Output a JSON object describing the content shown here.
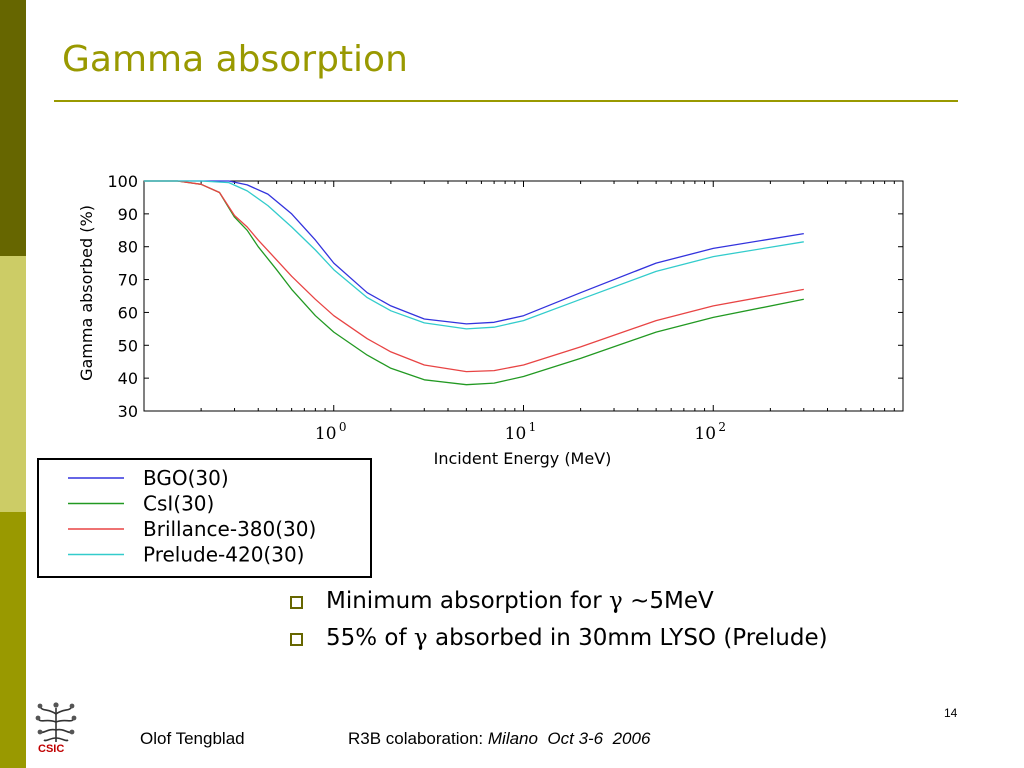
{
  "slide": {
    "title": "Gamma absorption",
    "page_number": "14",
    "footer": {
      "author": "Olof Tengblad",
      "event_prefix": "R3B colaboration: ",
      "event_location": "Milano  Oct 3-6  2006"
    },
    "logo_text": "CSIC",
    "bullets": [
      {
        "before": "Minimum absorption for ",
        "symbol": "γ",
        "after": " ~5MeV"
      },
      {
        "before": "55% of ",
        "symbol": "γ",
        "after": " absorbed in 30mm LYSO (Prelude)"
      }
    ]
  },
  "colors": {
    "accent_dark": "#666600",
    "accent_light": "#cccc66",
    "accent_mid": "#999900",
    "logo_red": "#c00000"
  },
  "chart_data": {
    "type": "line",
    "title": "",
    "xlabel": "Incident Energy (MeV)",
    "ylabel": "Gamma absorbed (%)",
    "xscale": "log",
    "xlim": [
      0.1,
      1000
    ],
    "ylim": [
      30,
      100
    ],
    "yticks": [
      30,
      40,
      50,
      60,
      70,
      80,
      90,
      100
    ],
    "xticks": [
      {
        "value": 1,
        "base": "10",
        "exp": "0"
      },
      {
        "value": 10,
        "base": "10",
        "exp": "1"
      },
      {
        "value": 100,
        "base": "10",
        "exp": "2"
      }
    ],
    "legend_position": "below-left",
    "series": [
      {
        "name": "BGO(30)",
        "color": "#3333dd",
        "x": [
          0.1,
          0.2,
          0.28,
          0.35,
          0.45,
          0.6,
          0.8,
          1.0,
          1.5,
          2.0,
          3.0,
          5.0,
          7.0,
          10,
          20,
          50,
          100,
          300
        ],
        "y": [
          100,
          100,
          100,
          98.8,
          96,
          90,
          82,
          75,
          66,
          62,
          58,
          56.5,
          57,
          59,
          66,
          75,
          79.5,
          84
        ]
      },
      {
        "name": "CsI(30)",
        "color": "#229922",
        "x": [
          0.1,
          0.15,
          0.2,
          0.25,
          0.3,
          0.35,
          0.4,
          0.5,
          0.6,
          0.8,
          1.0,
          1.5,
          2.0,
          3.0,
          5.0,
          7.0,
          10,
          20,
          50,
          100,
          300
        ],
        "y": [
          100,
          100,
          99,
          96.5,
          89,
          85,
          80,
          73,
          67,
          59,
          54,
          47,
          43,
          39.5,
          38,
          38.5,
          40.5,
          46,
          54,
          58.5,
          64
        ]
      },
      {
        "name": "Brillance-380(30)",
        "color": "#e84444",
        "x": [
          0.1,
          0.15,
          0.2,
          0.25,
          0.3,
          0.35,
          0.4,
          0.5,
          0.6,
          0.8,
          1.0,
          1.5,
          2.0,
          3.0,
          5.0,
          7.0,
          10,
          20,
          50,
          100,
          300
        ],
        "y": [
          100,
          100,
          99,
          96.5,
          89.5,
          86,
          82,
          76,
          71,
          64,
          59,
          52,
          48,
          44,
          42,
          42.3,
          44,
          49.5,
          57.5,
          62,
          67
        ]
      },
      {
        "name": "Prelude-420(30)",
        "color": "#33cccc",
        "x": [
          0.1,
          0.2,
          0.28,
          0.35,
          0.45,
          0.6,
          0.8,
          1.0,
          1.5,
          2.0,
          3.0,
          5.0,
          7.0,
          10,
          20,
          50,
          100,
          300
        ],
        "y": [
          100,
          100,
          99.5,
          97,
          92.5,
          86,
          79,
          73,
          64.5,
          60.5,
          56.8,
          55,
          55.5,
          57.5,
          64,
          72.5,
          77,
          81.5
        ]
      }
    ]
  }
}
